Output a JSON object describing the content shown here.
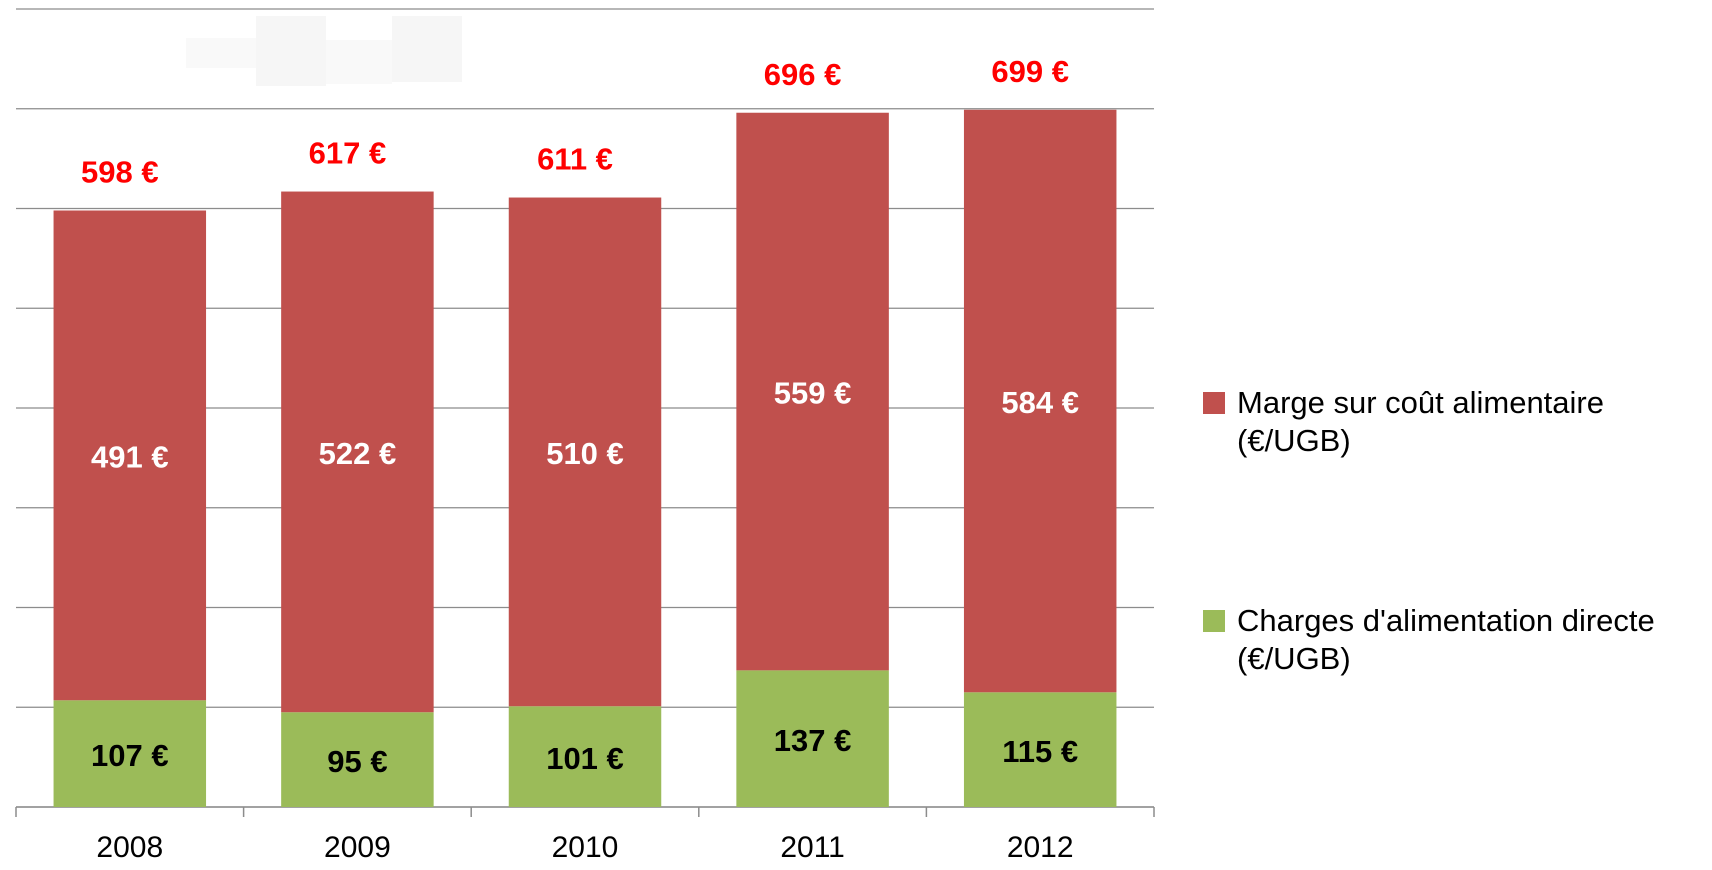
{
  "chart_data": {
    "type": "stacked_bar",
    "categories": [
      "2008",
      "2009",
      "2010",
      "2011",
      "2012"
    ],
    "series": [
      {
        "name": "Charges d'alimentation directe  (€/UGB)",
        "color": "#9bbb59",
        "values": [
          107,
          95,
          101,
          137,
          115
        ],
        "value_labels": [
          "107 €",
          "95 €",
          "101 €",
          "137 €",
          "115 €"
        ],
        "label_color": "#000000"
      },
      {
        "name": "Marge sur coût alimentaire (€/UGB)",
        "color": "#c0504d",
        "values": [
          491,
          522,
          510,
          559,
          584
        ],
        "value_labels": [
          "491 €",
          "522 €",
          "510 €",
          "559 €",
          "584 €"
        ],
        "label_color": "#ffffff"
      }
    ],
    "total_labels": [
      "598 €",
      "617 €",
      "611 €",
      "696 €",
      "699 €"
    ],
    "total_label_color": "#ff0000",
    "ylim": [
      0,
      800
    ],
    "yticks": [
      0,
      100,
      200,
      300,
      400,
      500,
      600,
      700,
      800
    ],
    "grid": true,
    "legend": "right"
  }
}
